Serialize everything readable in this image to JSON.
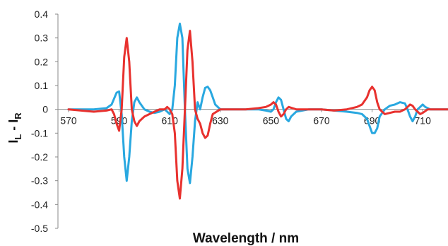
{
  "chart_data": {
    "type": "line",
    "xlabel": "Wavelength / nm",
    "ylabel_main": "I",
    "ylabel_sub1": "L",
    "ylabel_mid": " - I",
    "ylabel_sub2": "R",
    "xlim": [
      570,
      720
    ],
    "ylim": [
      -0.5,
      0.4
    ],
    "xticks": [
      570,
      590,
      610,
      630,
      650,
      670,
      690,
      710
    ],
    "yticks": [
      0.4,
      0.3,
      0.2,
      0.1,
      0,
      -0.1,
      -0.2,
      -0.3,
      -0.4,
      -0.5
    ],
    "grid": false,
    "legend": "none",
    "series": [
      {
        "color": "#29a8e0",
        "points": [
          [
            570,
            0
          ],
          [
            580,
            0
          ],
          [
            585,
            0.005
          ],
          [
            587,
            0.02
          ],
          [
            589,
            0.07
          ],
          [
            590,
            0.075
          ],
          [
            591,
            -0.02
          ],
          [
            592,
            -0.2
          ],
          [
            593,
            -0.3
          ],
          [
            594,
            -0.2
          ],
          [
            595,
            -0.05
          ],
          [
            596,
            0.03
          ],
          [
            597,
            0.05
          ],
          [
            598,
            0.03
          ],
          [
            600,
            0.0
          ],
          [
            602,
            -0.01
          ],
          [
            604,
            -0.015
          ],
          [
            606,
            -0.01
          ],
          [
            608,
            0.0
          ],
          [
            609,
            -0.01
          ],
          [
            610,
            -0.02
          ],
          [
            611,
            0.0
          ],
          [
            612,
            0.1
          ],
          [
            613,
            0.3
          ],
          [
            614,
            0.36
          ],
          [
            615,
            0.3
          ],
          [
            616,
            0.0
          ],
          [
            617,
            -0.25
          ],
          [
            618,
            -0.31
          ],
          [
            619,
            -0.2
          ],
          [
            620,
            -0.05
          ],
          [
            621,
            0.03
          ],
          [
            622,
            0.0
          ],
          [
            623,
            0.05
          ],
          [
            624,
            0.09
          ],
          [
            625,
            0.095
          ],
          [
            626,
            0.08
          ],
          [
            627,
            0.05
          ],
          [
            628,
            0.02
          ],
          [
            630,
            0.0
          ],
          [
            635,
            0.0
          ],
          [
            640,
            0.0
          ],
          [
            645,
            0.0
          ],
          [
            648,
            -0.005
          ],
          [
            650,
            -0.01
          ],
          [
            651,
            0.0
          ],
          [
            652,
            0.03
          ],
          [
            653,
            0.05
          ],
          [
            654,
            0.04
          ],
          [
            655,
            0.0
          ],
          [
            656,
            -0.04
          ],
          [
            657,
            -0.05
          ],
          [
            658,
            -0.03
          ],
          [
            660,
            -0.01
          ],
          [
            665,
            0.0
          ],
          [
            670,
            0.0
          ],
          [
            675,
            -0.005
          ],
          [
            680,
            -0.01
          ],
          [
            684,
            -0.015
          ],
          [
            686,
            -0.02
          ],
          [
            688,
            -0.04
          ],
          [
            689,
            -0.07
          ],
          [
            690,
            -0.1
          ],
          [
            691,
            -0.1
          ],
          [
            692,
            -0.08
          ],
          [
            693,
            -0.03
          ],
          [
            695,
            0.0
          ],
          [
            697,
            0.015
          ],
          [
            699,
            0.02
          ],
          [
            701,
            0.03
          ],
          [
            703,
            0.025
          ],
          [
            704,
            0.0
          ],
          [
            705,
            -0.03
          ],
          [
            706,
            -0.05
          ],
          [
            707,
            -0.03
          ],
          [
            708,
            0.0
          ],
          [
            709,
            0.01
          ],
          [
            710,
            0.02
          ],
          [
            711,
            0.01
          ],
          [
            713,
            0.0
          ],
          [
            720,
            0.0
          ]
        ]
      },
      {
        "color": "#e8312e",
        "points": [
          [
            570,
            0
          ],
          [
            575,
            -0.005
          ],
          [
            580,
            -0.01
          ],
          [
            585,
            -0.005
          ],
          [
            587,
            0.0
          ],
          [
            588,
            -0.02
          ],
          [
            589,
            -0.06
          ],
          [
            590,
            -0.09
          ],
          [
            591,
            0.0
          ],
          [
            592,
            0.22
          ],
          [
            593,
            0.3
          ],
          [
            594,
            0.2
          ],
          [
            595,
            0.0
          ],
          [
            596,
            -0.05
          ],
          [
            597,
            -0.07
          ],
          [
            598,
            -0.05
          ],
          [
            600,
            -0.03
          ],
          [
            602,
            -0.02
          ],
          [
            604,
            -0.01
          ],
          [
            606,
            0.0
          ],
          [
            608,
            0.0
          ],
          [
            609,
            0.01
          ],
          [
            610,
            0.0
          ],
          [
            611,
            -0.02
          ],
          [
            612,
            -0.1
          ],
          [
            613,
            -0.3
          ],
          [
            614,
            -0.375
          ],
          [
            615,
            -0.25
          ],
          [
            616,
            0.0
          ],
          [
            617,
            0.25
          ],
          [
            618,
            0.33
          ],
          [
            619,
            0.2
          ],
          [
            620,
            0.0
          ],
          [
            621,
            -0.04
          ],
          [
            622,
            -0.06
          ],
          [
            623,
            -0.1
          ],
          [
            624,
            -0.12
          ],
          [
            625,
            -0.11
          ],
          [
            626,
            -0.06
          ],
          [
            627,
            -0.02
          ],
          [
            630,
            0.0
          ],
          [
            640,
            0.0
          ],
          [
            645,
            0.005
          ],
          [
            648,
            0.01
          ],
          [
            650,
            0.02
          ],
          [
            651,
            0.03
          ],
          [
            652,
            0.02
          ],
          [
            653,
            -0.01
          ],
          [
            654,
            -0.03
          ],
          [
            655,
            -0.02
          ],
          [
            656,
            0.0
          ],
          [
            657,
            0.01
          ],
          [
            660,
            0.0
          ],
          [
            670,
            0.0
          ],
          [
            675,
            -0.005
          ],
          [
            680,
            0.0
          ],
          [
            684,
            0.01
          ],
          [
            686,
            0.02
          ],
          [
            688,
            0.05
          ],
          [
            689,
            0.08
          ],
          [
            690,
            0.095
          ],
          [
            691,
            0.08
          ],
          [
            692,
            0.03
          ],
          [
            693,
            0.0
          ],
          [
            695,
            -0.02
          ],
          [
            697,
            -0.015
          ],
          [
            699,
            -0.01
          ],
          [
            701,
            -0.01
          ],
          [
            703,
            0.0
          ],
          [
            704,
            0.01
          ],
          [
            705,
            0.02
          ],
          [
            706,
            0.015
          ],
          [
            707,
            0.0
          ],
          [
            708,
            -0.01
          ],
          [
            709,
            -0.02
          ],
          [
            710,
            -0.015
          ],
          [
            712,
            0.0
          ],
          [
            720,
            0.0
          ]
        ]
      }
    ]
  }
}
